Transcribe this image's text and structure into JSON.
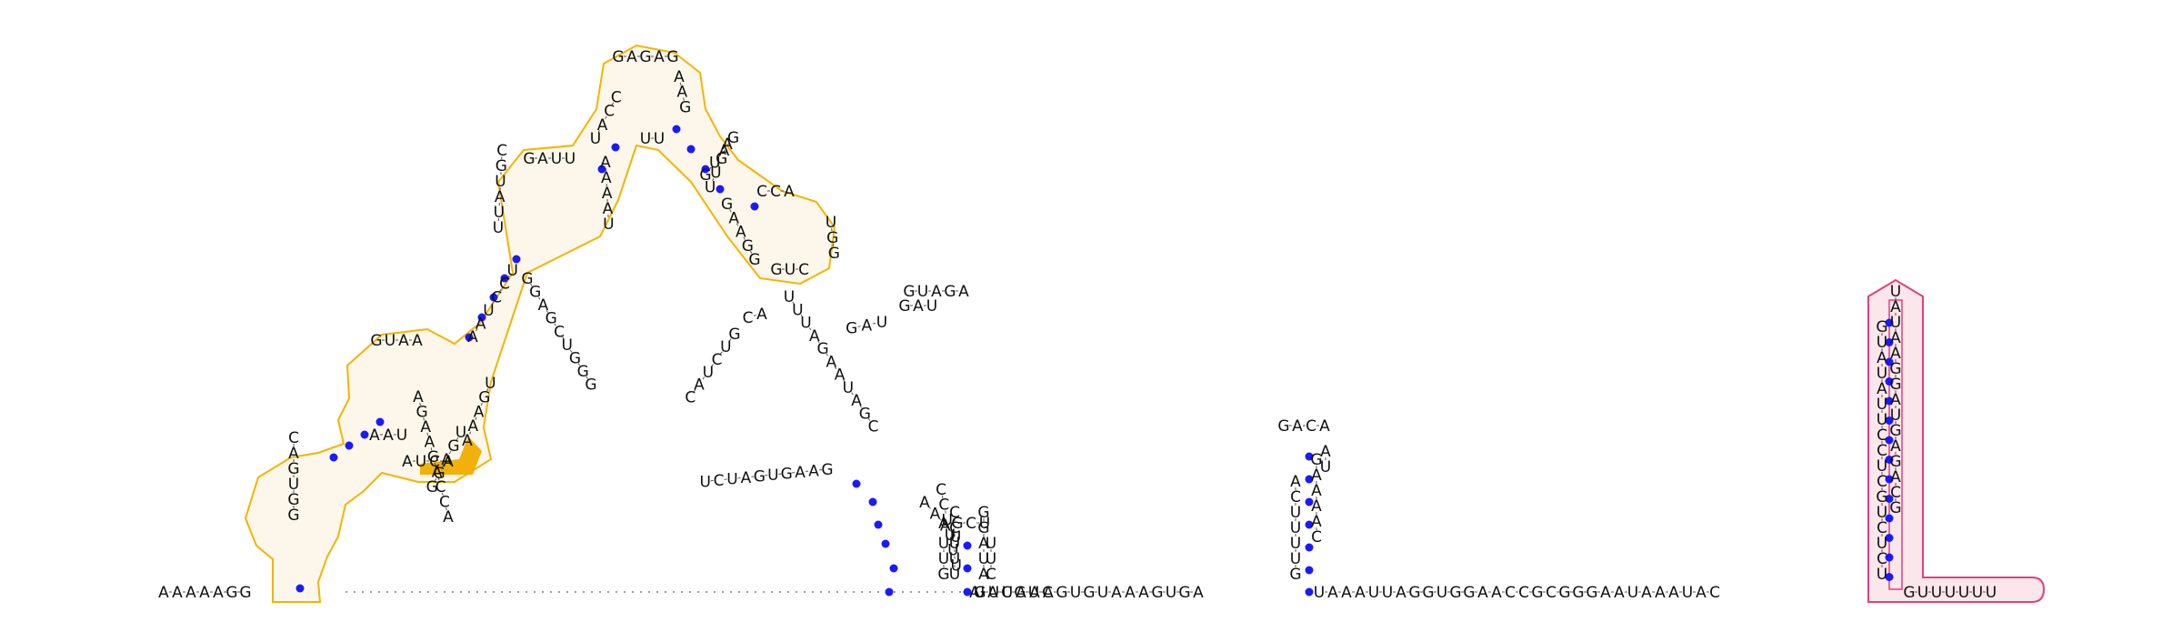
{
  "colors": {
    "domain_orange": "#f5b400",
    "domain_orange_fill": "#f7e8c4",
    "domain_orange_highlight": "#f2b10a",
    "domain_pink": "#e0417e",
    "domain_pink_fill": "#f8d6df",
    "base_pair": "#1a1aff",
    "text": "#111111"
  },
  "segments": [
    {
      "type": "seq",
      "start": [
        180,
        651
      ],
      "dir": [
        1,
        0
      ],
      "step": 15,
      "seq": "AAAAAGG"
    },
    {
      "type": "seq",
      "start": [
        323,
        481
      ],
      "dir": [
        0,
        1
      ],
      "step": 17,
      "seq": "CAGUGG"
    },
    {
      "type": "seq",
      "start": [
        412,
        478
      ],
      "dir": [
        1,
        0
      ],
      "step": 15,
      "seq": "AAU"
    },
    {
      "type": "seq",
      "start": [
        507,
        475
      ],
      "dir": [
        -0.53,
        1
      ],
      "step": 17,
      "seq": "UGAGG"
    },
    {
      "type": "seq",
      "start": [
        460,
        436
      ],
      "dir": [
        0.25,
        1
      ],
      "step": 17,
      "seq": "AGAAGACCA"
    },
    {
      "type": "seq",
      "start": [
        414,
        374
      ],
      "dir": [
        1,
        0
      ],
      "step": 15,
      "seq": "GUAA"
    },
    {
      "type": "seq",
      "start": [
        448,
        507
      ],
      "dir": [
        1,
        0
      ],
      "step": 15,
      "seq": "AUCA"
    },
    {
      "type": "seq",
      "start": [
        514,
        484
      ],
      "dir": [
        0.4,
        -1
      ],
      "step": 17,
      "seq": "AAAGU"
    },
    {
      "type": "seq",
      "start": [
        520,
        370
      ],
      "dir": [
        0.6,
        -1
      ],
      "step": 17,
      "seq": "AAUCCU"
    },
    {
      "type": "seq",
      "start": [
        548,
        250
      ],
      "dir": [
        0.05,
        -1
      ],
      "step": 17,
      "seq": "UUAUGC"
    },
    {
      "type": "seq",
      "start": [
        582,
        174
      ],
      "dir": [
        1,
        0
      ],
      "step": 15,
      "seq": "GAUU"
    },
    {
      "type": "seq",
      "start": [
        666,
        178
      ],
      "dir": [
        0.05,
        1
      ],
      "step": 17,
      "seq": "AAAAU"
    },
    {
      "type": "seq",
      "start": [
        580,
        306
      ],
      "dir": [
        0.6,
        1
      ],
      "step": 17,
      "seq": "GGAGCUGGG"
    },
    {
      "type": "seq",
      "start": [
        655,
        152
      ],
      "dir": [
        0.5,
        -1
      ],
      "step": 17,
      "seq": "UACC"
    },
    {
      "type": "seq",
      "start": [
        680,
        62
      ],
      "dir": [
        1,
        0
      ],
      "step": 15,
      "seq": "GAGAG"
    },
    {
      "type": "seq",
      "start": [
        747,
        84
      ],
      "dir": [
        0.2,
        1
      ],
      "step": 17,
      "seq": "AAG"
    },
    {
      "type": "seq",
      "start": [
        800,
        158
      ],
      "dir": [
        -0.4,
        1
      ],
      "step": 17,
      "seq": "AGUU"
    },
    {
      "type": "seq",
      "start": [
        710,
        152
      ],
      "dir": [
        1,
        0
      ],
      "step": 15,
      "seq": "UU"
    },
    {
      "type": "seq",
      "start": [
        776,
        192
      ],
      "dir": [
        0.75,
        -1
      ],
      "step": 17,
      "seq": "GUAG"
    },
    {
      "type": "seq",
      "start": [
        838,
        210
      ],
      "dir": [
        1,
        0
      ],
      "step": 15,
      "seq": "CCA"
    },
    {
      "type": "seq",
      "start": [
        914,
        244
      ],
      "dir": [
        0.1,
        1
      ],
      "step": 17,
      "seq": "UGG"
    },
    {
      "type": "seq",
      "start": [
        884,
        296
      ],
      "dir": [
        -1,
        0
      ],
      "step": 15,
      "seq": "CUG"
    },
    {
      "type": "seq",
      "start": [
        830,
        285
      ],
      "dir": [
        -0.5,
        -1
      ],
      "step": 17,
      "seq": "GGAAG"
    },
    {
      "type": "seq",
      "start": [
        1060,
        320
      ],
      "dir": [
        -1,
        0
      ],
      "step": 15,
      "seq": "AGAUG"
    },
    {
      "type": "seq",
      "start": [
        995,
        336
      ],
      "dir": [
        1,
        0
      ],
      "step": 15,
      "seq": "GAU"
    },
    {
      "type": "seq",
      "start": [
        970,
        354
      ],
      "dir": [
        -1,
        0.2
      ],
      "step": 17,
      "seq": "UAG"
    },
    {
      "type": "seq",
      "start": [
        868,
        326
      ],
      "dir": [
        0.65,
        1
      ],
      "step": 17,
      "seq": "UUUAGAAUAGC"
    },
    {
      "type": "seq",
      "start": [
        838,
        345
      ],
      "dir": [
        -1,
        0.25
      ],
      "step": 16,
      "seq": "AC"
    },
    {
      "type": "seq",
      "start": [
        808,
        367
      ],
      "dir": [
        -0.7,
        1
      ],
      "step": 17,
      "seq": "GUCUAC"
    },
    {
      "type": "seq",
      "start": [
        910,
        516
      ],
      "dir": [
        -1,
        0.1
      ],
      "step": 15,
      "seq": "GAAGUGAUCU"
    },
    {
      "type": "seq",
      "start": [
        1035,
        538
      ],
      "dir": [
        0.2,
        1
      ],
      "step": 17,
      "seq": "CCUUUU"
    },
    {
      "type": "seq",
      "start": [
        1017,
        552
      ],
      "dir": [
        0.9,
        1
      ],
      "step": 17,
      "seq": "AAAU"
    },
    {
      "type": "seq",
      "start": [
        1077,
        651
      ],
      "dir": [
        1,
        0
      ],
      "step": 15,
      "seq": "UACGUC"
    },
    {
      "type": "seq",
      "start": [
        1072,
        651
      ],
      "dir": [
        0,
        -1
      ],
      "step": 17,
      "seq": "A"
    },
    {
      "type": "seq",
      "start": [
        1050,
        631
      ],
      "dir": [
        0,
        -1
      ],
      "step": 17,
      "seq": "UUUCC"
    },
    {
      "type": "seq",
      "start": [
        1082,
        631
      ],
      "dir": [
        0,
        -1
      ],
      "step": 17,
      "seq": "AUAGG"
    },
    {
      "type": "seq",
      "start": [
        1038,
        575
      ],
      "dir": [
        1,
        0
      ],
      "step": 15,
      "seq": "AGCU"
    },
    {
      "type": "seq",
      "start": [
        1038,
        631
      ],
      "dir": [
        0,
        -1
      ],
      "step": 17,
      "seq": "GUU"
    },
    {
      "type": "seq",
      "start": [
        1090,
        631
      ],
      "dir": [
        0,
        -1
      ],
      "step": 17,
      "seq": "CUU"
    },
    {
      "type": "seq",
      "start": [
        1078,
        651
      ],
      "dir": [
        1,
        0
      ],
      "step": 15,
      "seq": "GUUAAAGUGUAAAGUGA"
    },
    {
      "type": "seq",
      "start": [
        1425,
        631
      ],
      "dir": [
        0,
        -1
      ],
      "step": 17,
      "seq": "GUUUUCA"
    },
    {
      "type": "seq",
      "start": [
        1412,
        468
      ],
      "dir": [
        1,
        0
      ],
      "step": 15,
      "seq": "GACA"
    },
    {
      "type": "seq",
      "start": [
        1458,
        496
      ],
      "dir": [
        0,
        1
      ],
      "step": 17,
      "seq": "AU"
    },
    {
      "type": "seq",
      "start": [
        1448,
        505
      ],
      "dir": [
        0,
        1
      ],
      "step": 17,
      "seq": "GAAAAC"
    },
    {
      "type": "seq",
      "start": [
        1451,
        651
      ],
      "dir": [
        1,
        0
      ],
      "step": 15,
      "seq": "UAAAUUAGGUGGAACCGCGGGAAUAAAUAC"
    },
    {
      "type": "seq",
      "start": [
        2070,
        631
      ],
      "dir": [
        0,
        -1
      ],
      "step": 17,
      "seq": "UCUCUGCUCCUUAUAUG"
    },
    {
      "type": "seq",
      "start": [
        2085,
        320
      ],
      "dir": [
        0,
        1
      ],
      "step": 17,
      "seq": "UAUAAGGAUGAGACG"
    },
    {
      "type": "seq",
      "start": [
        2100,
        651
      ],
      "dir": [
        1,
        0
      ],
      "step": 15,
      "seq": "GUUUUUU"
    }
  ]
}
